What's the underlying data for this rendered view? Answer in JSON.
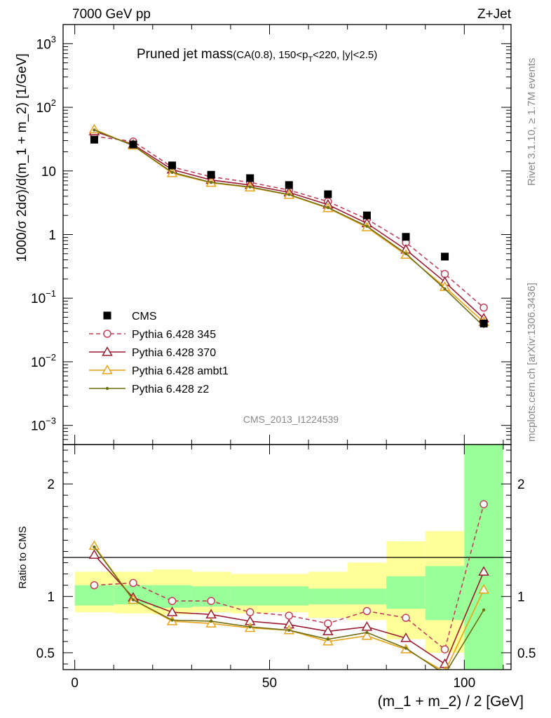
{
  "header": {
    "left": "7000 GeV pp",
    "right": "Z+Jet"
  },
  "side_labels": {
    "rivet": "Rivet 3.1.10, ≥ 1.7M events",
    "mcplots": "mcplots.cern.ch [arXiv:1306.3436]"
  },
  "analysis_id": "CMS_2013_I1224539",
  "chart_data": [
    {
      "type": "scatter",
      "panel": "main",
      "title_main": "Pruned jet mass",
      "title_sub_a": "(CA(0.8), 150<p",
      "title_sub_sub": "T",
      "title_sub_b": "<220, |y|<2.5)",
      "ylabel": "1000/σ 2dσ)/d(m_1 + m_2) [1/GeV]",
      "y_scale": "log",
      "ylim": [
        0.0005,
        2000
      ],
      "xlim": [
        -3,
        112
      ],
      "y_ticks": [
        {
          "v": 0.001,
          "base": "10",
          "exp": "−3"
        },
        {
          "v": 0.01,
          "base": "10",
          "exp": "−2"
        },
        {
          "v": 0.1,
          "base": "10",
          "exp": "−1"
        },
        {
          "v": 1,
          "base": "1",
          "exp": ""
        },
        {
          "v": 10,
          "base": "10",
          "exp": ""
        },
        {
          "v": 100,
          "base": "10",
          "exp": "2"
        },
        {
          "v": 1000,
          "base": "10",
          "exp": "3"
        }
      ],
      "x": [
        5,
        15,
        25,
        35,
        45,
        55,
        65,
        75,
        85,
        95,
        105
      ],
      "series": [
        {
          "name": "CMS",
          "color": "#000000",
          "marker": "square",
          "line": "none",
          "values": [
            31,
            26,
            12.2,
            8.7,
            7.7,
            6.0,
            4.3,
            2.0,
            0.92,
            0.45,
            0.04
          ]
        },
        {
          "name": "Pythia 6.428 345",
          "color": "#c0405a",
          "marker": "circle",
          "line": "dashed",
          "values": [
            35,
            29,
            11.5,
            8.1,
            6.6,
            5.0,
            3.3,
            1.75,
            0.75,
            0.24,
            0.071
          ]
        },
        {
          "name": "Pythia 6.428 370",
          "color": "#9b1b30",
          "marker": "triangle",
          "line": "solid",
          "values": [
            42,
            26,
            10.5,
            7.2,
            6.0,
            4.6,
            2.95,
            1.5,
            0.58,
            0.18,
            0.048
          ]
        },
        {
          "name": "Pythia 6.428 ambt1",
          "color": "#e8a317",
          "marker": "triangle",
          "line": "solid",
          "values": [
            45,
            25,
            9.2,
            6.5,
            5.5,
            4.2,
            2.6,
            1.3,
            0.48,
            0.15,
            0.042
          ]
        },
        {
          "name": "Pythia 6.428 z2",
          "color": "#6e6e12",
          "marker": "dot",
          "line": "solid",
          "values": [
            44,
            25,
            9.5,
            6.6,
            5.6,
            4.25,
            2.65,
            1.35,
            0.5,
            0.14,
            0.036
          ]
        }
      ]
    },
    {
      "type": "line",
      "panel": "ratio",
      "ylabel": "Ratio to CMS",
      "xlabel": "(m_1 + m_2) / 2 [GeV]",
      "ylim": [
        0.35,
        2.35
      ],
      "xlim": [
        -3,
        112
      ],
      "x_ticks": [
        0,
        50,
        100
      ],
      "y_ticks": [
        0.5,
        1,
        2
      ],
      "reference": 1,
      "band_edges": [
        0,
        10,
        20,
        30,
        40,
        50,
        60,
        70,
        80,
        90,
        100,
        110
      ],
      "band_inner": [
        [
          0.92,
          1.1
        ],
        [
          0.93,
          1.1
        ],
        [
          0.9,
          1.1
        ],
        [
          0.91,
          1.09
        ],
        [
          0.92,
          1.09
        ],
        [
          0.92,
          1.09
        ],
        [
          0.93,
          1.07
        ],
        [
          0.93,
          1.07
        ],
        [
          0.89,
          1.18
        ],
        [
          0.79,
          1.27
        ],
        [
          0.35,
          2.35
        ]
      ],
      "band_outer": [
        [
          0.86,
          1.22
        ],
        [
          0.85,
          1.22
        ],
        [
          0.84,
          1.24
        ],
        [
          0.86,
          1.22
        ],
        [
          0.85,
          1.2
        ],
        [
          0.86,
          1.2
        ],
        [
          0.81,
          1.22
        ],
        [
          0.79,
          1.3
        ],
        [
          0.62,
          1.49
        ],
        [
          0.5,
          1.58
        ],
        [
          0.35,
          2.35
        ]
      ],
      "series": [
        {
          "name": "Pythia 6.428 345",
          "values": [
            1.1,
            1.12,
            0.96,
            0.96,
            0.86,
            0.83,
            0.76,
            0.87,
            0.81,
            0.53,
            1.82
          ]
        },
        {
          "name": "Pythia 6.428 370",
          "values": [
            1.37,
            0.99,
            0.86,
            0.84,
            0.78,
            0.75,
            0.69,
            0.73,
            0.63,
            0.4,
            1.22
          ]
        },
        {
          "name": "Pythia 6.428 ambt1",
          "values": [
            1.45,
            0.97,
            0.78,
            0.76,
            0.72,
            0.7,
            0.6,
            0.65,
            0.53,
            0.33,
            1.06
          ]
        },
        {
          "name": "Pythia 6.428 z2",
          "values": [
            1.44,
            0.97,
            0.79,
            0.78,
            0.73,
            0.7,
            0.62,
            0.68,
            0.54,
            0.31,
            0.88
          ]
        }
      ]
    }
  ]
}
